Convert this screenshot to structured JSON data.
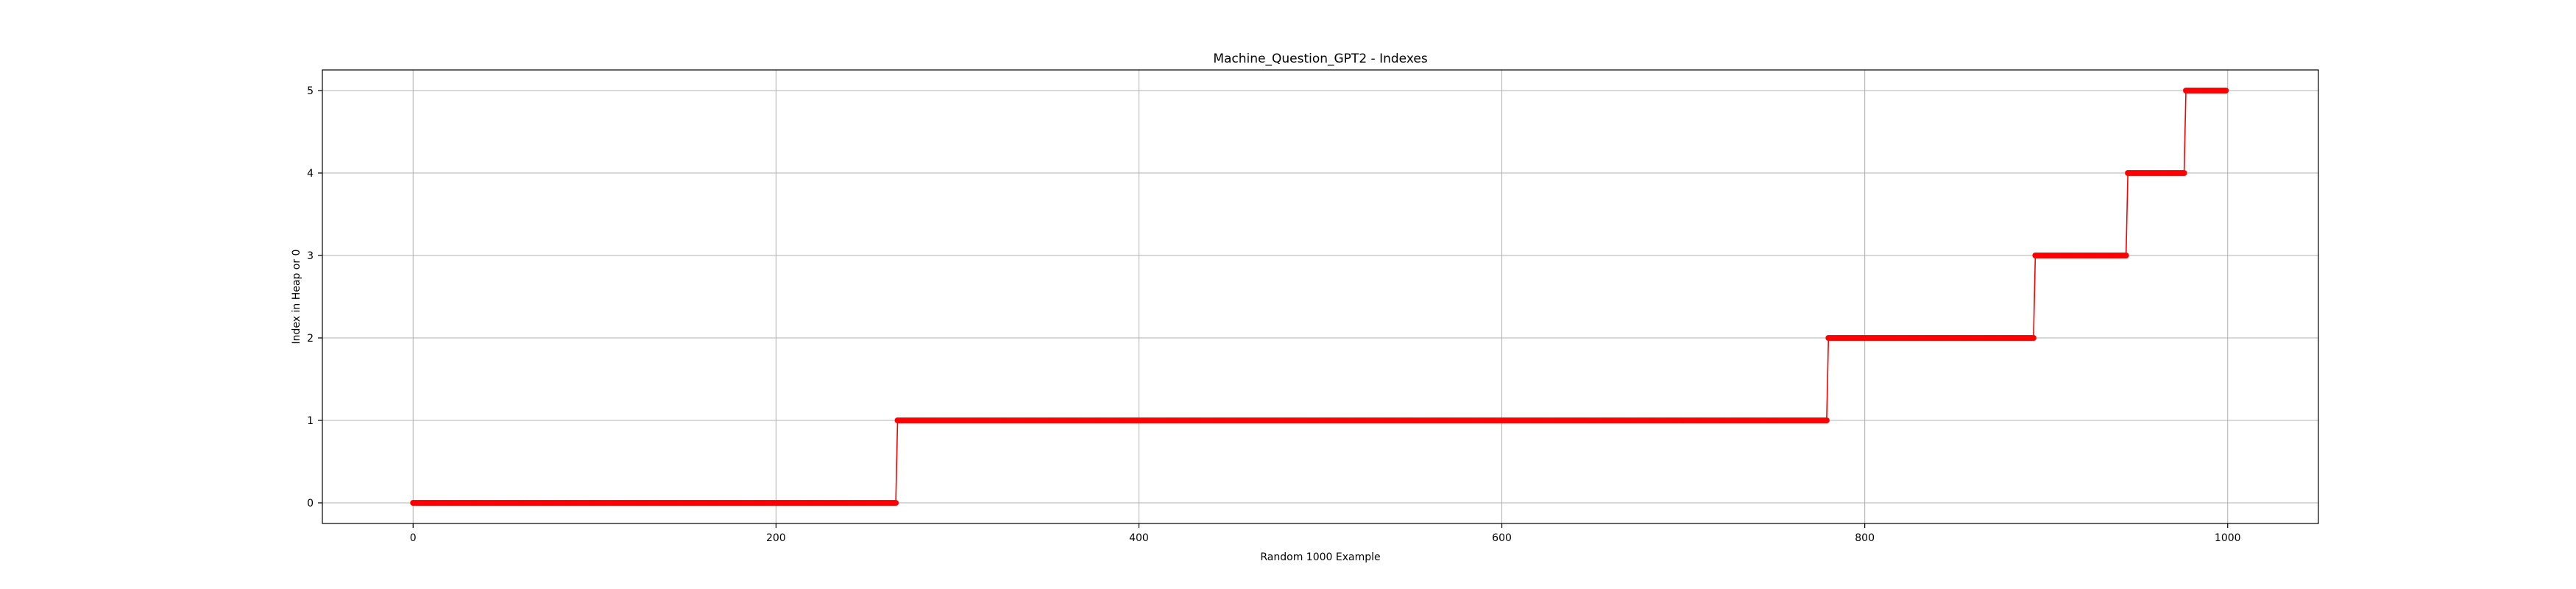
{
  "chart_data": {
    "type": "line",
    "title": "Machine_Question_GPT2 - Indexes",
    "xlabel": "Random 1000 Example",
    "ylabel": "Index in Heap or 0",
    "xlim": [
      -50,
      1050
    ],
    "ylim": [
      -0.25,
      5.25
    ],
    "xticks": [
      0,
      200,
      400,
      600,
      800,
      1000
    ],
    "yticks": [
      0,
      1,
      2,
      3,
      4,
      5
    ],
    "grid": true,
    "legend": "none",
    "line_color": "#ff0000",
    "marker": "circle",
    "segments": [
      {
        "y": 0,
        "x_start": 0,
        "x_end": 266
      },
      {
        "y": 1,
        "x_start": 267,
        "x_end": 779
      },
      {
        "y": 2,
        "x_start": 780,
        "x_end": 893
      },
      {
        "y": 3,
        "x_start": 894,
        "x_end": 944
      },
      {
        "y": 4,
        "x_start": 945,
        "x_end": 976
      },
      {
        "y": 5,
        "x_start": 977,
        "x_end": 999
      }
    ]
  }
}
